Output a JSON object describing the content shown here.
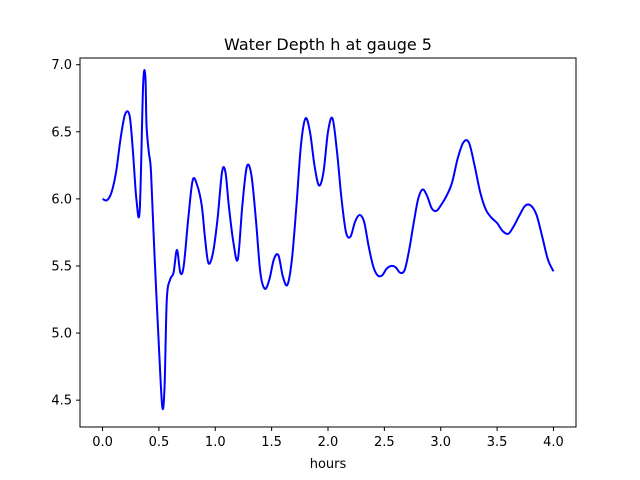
{
  "chart_data": {
    "type": "line",
    "title": "Water Depth h at gauge 5",
    "xlabel": "hours",
    "ylabel": "",
    "xlim": [
      -0.2,
      4.2
    ],
    "ylim": [
      4.3,
      7.05
    ],
    "grid": false,
    "xticks": [
      0.0,
      0.5,
      1.0,
      1.5,
      2.0,
      2.5,
      3.0,
      3.5,
      4.0
    ],
    "xtick_labels": [
      "0.0",
      "0.5",
      "1.0",
      "1.5",
      "2.0",
      "2.5",
      "3.0",
      "3.5",
      "4.0"
    ],
    "yticks": [
      4.5,
      5.0,
      5.5,
      6.0,
      6.5,
      7.0
    ],
    "ytick_labels": [
      "4.5",
      "5.0",
      "5.5",
      "6.0",
      "6.5",
      "7.0"
    ],
    "series": [
      {
        "color": "#0000ff",
        "x": [
          0.0,
          0.04,
          0.08,
          0.12,
          0.16,
          0.2,
          0.24,
          0.27,
          0.3,
          0.33,
          0.36,
          0.38,
          0.39,
          0.41,
          0.43,
          0.46,
          0.5,
          0.53,
          0.55,
          0.57,
          0.6,
          0.63,
          0.66,
          0.69,
          0.72,
          0.76,
          0.8,
          0.84,
          0.88,
          0.91,
          0.94,
          0.98,
          1.02,
          1.06,
          1.09,
          1.12,
          1.16,
          1.2,
          1.24,
          1.28,
          1.32,
          1.36,
          1.4,
          1.44,
          1.48,
          1.52,
          1.56,
          1.6,
          1.64,
          1.68,
          1.72,
          1.76,
          1.8,
          1.84,
          1.88,
          1.92,
          1.96,
          2.0,
          2.04,
          2.08,
          2.12,
          2.16,
          2.2,
          2.24,
          2.28,
          2.32,
          2.36,
          2.4,
          2.44,
          2.48,
          2.52,
          2.56,
          2.6,
          2.64,
          2.68,
          2.72,
          2.76,
          2.8,
          2.84,
          2.88,
          2.92,
          2.96,
          3.0,
          3.05,
          3.1,
          3.15,
          3.2,
          3.25,
          3.3,
          3.35,
          3.4,
          3.45,
          3.5,
          3.55,
          3.6,
          3.65,
          3.7,
          3.75,
          3.8,
          3.85,
          3.9,
          3.95,
          4.0
        ],
        "y": [
          6.0,
          5.99,
          6.05,
          6.2,
          6.45,
          6.63,
          6.62,
          6.35,
          6.0,
          5.92,
          6.85,
          6.91,
          6.55,
          6.35,
          6.2,
          5.6,
          4.9,
          4.45,
          4.6,
          5.25,
          5.4,
          5.45,
          5.62,
          5.45,
          5.5,
          5.85,
          6.14,
          6.1,
          5.95,
          5.7,
          5.52,
          5.6,
          5.85,
          6.2,
          6.2,
          5.95,
          5.68,
          5.55,
          5.95,
          6.24,
          6.18,
          5.85,
          5.45,
          5.33,
          5.4,
          5.55,
          5.58,
          5.42,
          5.36,
          5.55,
          5.95,
          6.4,
          6.6,
          6.5,
          6.25,
          6.1,
          6.2,
          6.5,
          6.6,
          6.35,
          6.0,
          5.75,
          5.72,
          5.83,
          5.88,
          5.83,
          5.65,
          5.5,
          5.43,
          5.43,
          5.48,
          5.5,
          5.49,
          5.45,
          5.47,
          5.62,
          5.82,
          6.0,
          6.07,
          6.02,
          5.93,
          5.91,
          5.95,
          6.02,
          6.12,
          6.3,
          6.42,
          6.42,
          6.25,
          6.05,
          5.92,
          5.86,
          5.82,
          5.76,
          5.74,
          5.8,
          5.88,
          5.95,
          5.95,
          5.88,
          5.72,
          5.55,
          5.46
        ]
      }
    ]
  }
}
